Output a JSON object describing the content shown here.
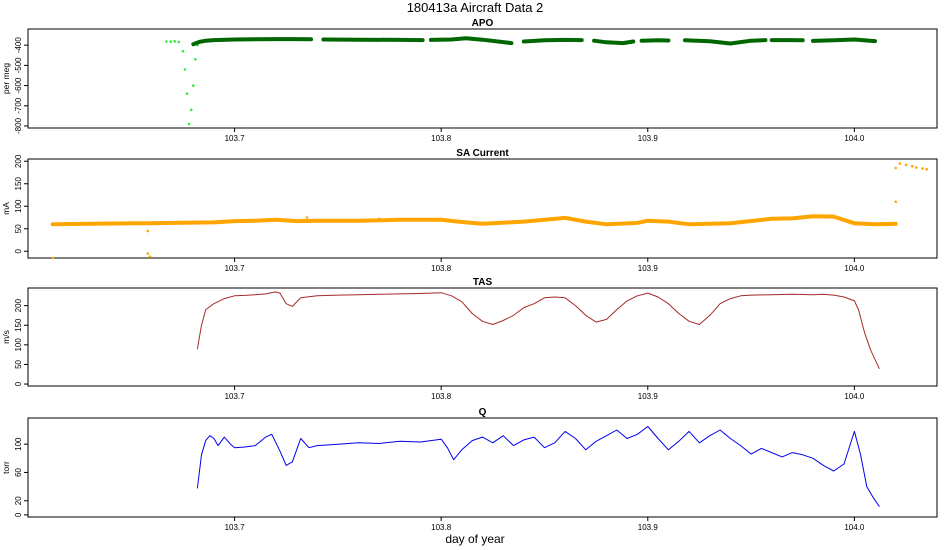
{
  "figure": {
    "title": "180413a   Aircraft Data 2",
    "xlabel": "day of year"
  },
  "chart_data": [
    {
      "type": "scatter",
      "title": "APO",
      "ylabel": "per meg",
      "xlim": [
        103.6,
        104.04
      ],
      "ylim": [
        -810,
        -320
      ],
      "xticks": [
        103.7,
        103.8,
        103.9,
        104.0
      ],
      "xtick_labels": [
        "103.7",
        "103.8",
        "103.9",
        "104.0"
      ],
      "yticks": [
        -400,
        -500,
        -600,
        -700,
        -800
      ],
      "ytick_labels": [
        "-400",
        "-500",
        "-600",
        "-700",
        "-800"
      ],
      "series": [
        {
          "name": "",
          "color": "#33ee33",
          "style": "points",
          "x": [
            103.667,
            103.669,
            103.671,
            103.673,
            103.675,
            103.676,
            103.677,
            103.678,
            103.679,
            103.68,
            103.681,
            103.682
          ],
          "y": [
            -382,
            -383,
            -381,
            -384,
            -430,
            -520,
            -640,
            -790,
            -720,
            -600,
            -470,
            -400
          ]
        },
        {
          "name": "",
          "color": "#006600",
          "style": "thick",
          "segments": [
            {
              "x": [
                103.68,
                103.683,
                103.686,
                103.69,
                103.7,
                103.71,
                103.72,
                103.73,
                103.737
              ],
              "y": [
                -395,
                -384,
                -378,
                -375,
                -372,
                -371,
                -370,
                -370,
                -371
              ]
            },
            {
              "x": [
                103.743,
                103.76,
                103.78,
                103.791
              ],
              "y": [
                -372,
                -373,
                -374,
                -375
              ]
            },
            {
              "x": [
                103.795,
                103.805,
                103.812,
                103.82,
                103.83,
                103.834
              ],
              "y": [
                -374,
                -372,
                -366,
                -373,
                -385,
                -390
              ]
            },
            {
              "x": [
                103.84,
                103.85,
                103.86,
                103.868
              ],
              "y": [
                -382,
                -376,
                -374,
                -375
              ]
            },
            {
              "x": [
                103.874,
                103.88,
                103.888,
                103.893
              ],
              "y": [
                -378,
                -386,
                -390,
                -382
              ]
            },
            {
              "x": [
                103.897,
                103.905,
                103.91
              ],
              "y": [
                -378,
                -376,
                -377
              ]
            },
            {
              "x": [
                103.918,
                103.93,
                103.94,
                103.95,
                103.957
              ],
              "y": [
                -376,
                -381,
                -392,
                -378,
                -375
              ]
            },
            {
              "x": [
                103.96,
                103.97,
                103.975
              ],
              "y": [
                -375,
                -375,
                -376
              ]
            },
            {
              "x": [
                103.98,
                103.99,
                104.0,
                104.01
              ],
              "y": [
                -379,
                -376,
                -372,
                -380
              ]
            }
          ]
        }
      ]
    },
    {
      "type": "scatter",
      "title": "SA Current",
      "ylabel": "mA",
      "xlim": [
        103.6,
        104.04
      ],
      "ylim": [
        -15,
        205
      ],
      "xticks": [
        103.7,
        103.8,
        103.9,
        104.0
      ],
      "xtick_labels": [
        "103.7",
        "103.8",
        "103.9",
        "104.0"
      ],
      "yticks": [
        0,
        50,
        100,
        150,
        200
      ],
      "ytick_labels": [
        "0",
        "50",
        "100",
        "150",
        "200"
      ],
      "series": [
        {
          "name": "",
          "color": "#ffa500",
          "style": "thick",
          "x": [
            103.612,
            103.63,
            103.65,
            103.66,
            103.67,
            103.69,
            103.7,
            103.71,
            103.72,
            103.73,
            103.74,
            103.76,
            103.78,
            103.8,
            103.81,
            103.82,
            103.84,
            103.86,
            103.87,
            103.88,
            103.895,
            103.9,
            103.91,
            103.92,
            103.94,
            103.96,
            103.97,
            103.98,
            103.99,
            104.0,
            104.01,
            104.02
          ],
          "y": [
            60,
            61,
            62,
            62,
            63,
            64,
            67,
            68,
            70,
            67,
            68,
            68,
            70,
            70,
            65,
            61,
            66,
            74,
            66,
            60,
            63,
            68,
            66,
            60,
            62,
            72,
            73,
            78,
            77,
            62,
            60,
            61
          ]
        },
        {
          "name": "",
          "color": "#ffa500",
          "style": "points",
          "x": [
            103.612,
            103.658,
            103.658,
            103.659,
            103.735,
            103.77,
            104.02,
            104.022,
            104.025,
            104.028,
            104.03,
            104.033,
            104.035,
            104.02
          ],
          "y": [
            -15,
            45,
            -5,
            -12,
            75,
            72,
            110,
            195,
            192,
            189,
            186,
            184,
            182,
            185
          ]
        }
      ]
    },
    {
      "type": "line",
      "title": "TAS",
      "ylabel": "m/s",
      "xlim": [
        103.6,
        104.04
      ],
      "ylim": [
        -5,
        245
      ],
      "xticks": [
        103.7,
        103.8,
        103.9,
        104.0
      ],
      "xtick_labels": [
        "103.7",
        "103.8",
        "103.9",
        "104.0"
      ],
      "yticks": [
        0,
        50,
        100,
        150,
        200
      ],
      "ytick_labels": [
        "0",
        "50",
        "100",
        "150",
        "200"
      ],
      "series": [
        {
          "name": "",
          "color": "#a52a2a",
          "x": [
            103.682,
            103.684,
            103.686,
            103.69,
            103.695,
            103.7,
            103.705,
            103.71,
            103.715,
            103.72,
            103.722,
            103.725,
            103.728,
            103.732,
            103.74,
            103.75,
            103.76,
            103.77,
            103.78,
            103.79,
            103.8,
            103.805,
            103.81,
            103.815,
            103.82,
            103.825,
            103.83,
            103.835,
            103.84,
            103.845,
            103.85,
            103.855,
            103.86,
            103.865,
            103.87,
            103.875,
            103.88,
            103.885,
            103.89,
            103.895,
            103.9,
            103.905,
            103.91,
            103.915,
            103.92,
            103.925,
            103.93,
            103.935,
            103.94,
            103.945,
            103.95,
            103.96,
            103.97,
            103.98,
            103.985,
            103.99,
            103.995,
            104.0,
            104.002,
            104.005,
            104.008,
            104.012
          ],
          "y": [
            90,
            150,
            190,
            205,
            218,
            225,
            226,
            228,
            230,
            235,
            232,
            205,
            198,
            220,
            225,
            227,
            228,
            229,
            230,
            231,
            233,
            225,
            210,
            180,
            160,
            152,
            162,
            175,
            195,
            205,
            220,
            222,
            220,
            200,
            175,
            158,
            165,
            190,
            212,
            225,
            232,
            222,
            205,
            180,
            160,
            152,
            175,
            205,
            218,
            225,
            227,
            228,
            229,
            228,
            229,
            227,
            222,
            212,
            190,
            130,
            85,
            40
          ]
        }
      ]
    },
    {
      "type": "line",
      "title": "Q",
      "ylabel": "torr",
      "xlim": [
        103.6,
        104.04
      ],
      "ylim": [
        -3,
        137
      ],
      "xticks": [
        103.7,
        103.8,
        103.9,
        104.0
      ],
      "xtick_labels": [
        "103.7",
        "103.8",
        "103.9",
        "104.0"
      ],
      "yticks": [
        0,
        20,
        60,
        100
      ],
      "ytick_labels": [
        "0",
        "20",
        "60",
        "100"
      ],
      "series": [
        {
          "name": "",
          "color": "#0000ee",
          "x": [
            103.682,
            103.684,
            103.686,
            103.688,
            103.69,
            103.692,
            103.695,
            103.698,
            103.7,
            103.705,
            103.71,
            103.715,
            103.718,
            103.722,
            103.725,
            103.728,
            103.732,
            103.736,
            103.74,
            103.75,
            103.76,
            103.77,
            103.78,
            103.79,
            103.8,
            103.803,
            103.806,
            103.81,
            103.815,
            103.82,
            103.825,
            103.83,
            103.835,
            103.84,
            103.845,
            103.85,
            103.855,
            103.86,
            103.865,
            103.87,
            103.875,
            103.88,
            103.885,
            103.89,
            103.895,
            103.9,
            103.905,
            103.91,
            103.915,
            103.92,
            103.925,
            103.93,
            103.935,
            103.94,
            103.945,
            103.95,
            103.955,
            103.96,
            103.965,
            103.97,
            103.975,
            103.98,
            103.985,
            103.99,
            103.995,
            104.0,
            104.003,
            104.006,
            104.009,
            104.012
          ],
          "y": [
            38,
            85,
            105,
            112,
            108,
            98,
            110,
            100,
            95,
            96,
            98,
            110,
            114,
            90,
            70,
            75,
            108,
            95,
            98,
            100,
            102,
            101,
            104,
            103,
            107,
            95,
            78,
            92,
            105,
            110,
            102,
            112,
            98,
            106,
            110,
            95,
            102,
            118,
            108,
            92,
            104,
            112,
            120,
            108,
            114,
            125,
            108,
            92,
            104,
            118,
            102,
            112,
            120,
            108,
            98,
            86,
            94,
            88,
            82,
            88,
            85,
            80,
            70,
            62,
            72,
            118,
            85,
            40,
            25,
            12
          ]
        }
      ]
    }
  ]
}
